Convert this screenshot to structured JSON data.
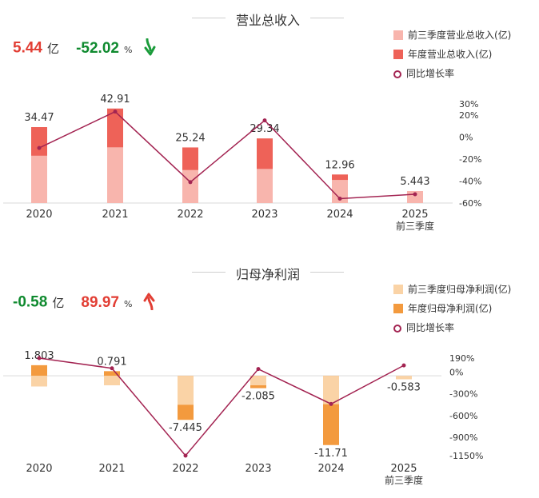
{
  "chart_data": [
    {
      "type": "bar",
      "title": "营业总收入",
      "summary": {
        "value": "5.44",
        "value_unit": "亿",
        "change": "-52.02",
        "change_unit": "%",
        "direction": "down"
      },
      "legend": [
        "前三季度营业总收入(亿)",
        "年度营业总收入(亿)",
        "同比增长率"
      ],
      "categories": [
        "2020",
        "2021",
        "2022",
        "2023",
        "2024",
        "2025"
      ],
      "category_sublabels": [
        "",
        "",
        "",
        "",
        "",
        "前三季度"
      ],
      "series": [
        {
          "name": "前三季度营业总收入(亿)",
          "values": [
            21.5,
            25.3,
            15.0,
            15.5,
            10.5,
            5.443
          ]
        },
        {
          "name": "年度营业总收入(亿)",
          "values": [
            34.47,
            42.91,
            25.24,
            29.34,
            12.96,
            null
          ]
        },
        {
          "name": "同比增长率",
          "axis": "right",
          "values": [
            -10,
            23,
            -41,
            15,
            -56,
            -52.02
          ]
        }
      ],
      "bar_labels": [
        "34.47",
        "42.91",
        "25.24",
        "29.34",
        "12.96",
        "5.443"
      ],
      "ylim": [
        0,
        45
      ],
      "y2_ticks": [
        "30%",
        "20%",
        "0%",
        "-20%",
        "-40%",
        "-60%"
      ],
      "y2_tick_values": [
        30,
        20,
        0,
        -20,
        -40,
        -60
      ],
      "y2lim": [
        -60,
        30
      ],
      "colors": {
        "nine_month": "#f8b5ad",
        "annual": "#ee6258",
        "growth": "#a32452"
      }
    },
    {
      "type": "bar",
      "title": "归母净利润",
      "summary": {
        "value": "-0.58",
        "value_unit": "亿",
        "change": "89.97",
        "change_unit": "%",
        "direction": "up"
      },
      "legend": [
        "前三季度归母净利润(亿)",
        "年度归母净利润(亿)",
        "同比增长率"
      ],
      "categories": [
        "2020",
        "2021",
        "2022",
        "2023",
        "2024",
        "2025"
      ],
      "category_sublabels": [
        "",
        "",
        "",
        "",
        "",
        "前三季度"
      ],
      "series": [
        {
          "name": "前三季度归母净利润(亿)",
          "values": [
            -1.8,
            -1.6,
            -4.9,
            -1.6,
            -4.8,
            -0.583
          ]
        },
        {
          "name": "年度归母净利润(亿)",
          "values": [
            1.803,
            0.791,
            -7.445,
            -2.085,
            -11.71,
            null
          ]
        },
        {
          "name": "同比增长率",
          "axis": "right",
          "values": [
            190,
            50,
            -1150,
            40,
            -440,
            89.97
          ]
        }
      ],
      "bar_labels": [
        "1.803",
        "0.791",
        "-7.445",
        "-2.085",
        "-11.71",
        "-0.583"
      ],
      "ylim": [
        -13.5,
        3
      ],
      "y2_ticks": [
        "190%",
        "0%",
        "-300%",
        "-600%",
        "-900%",
        "-1150%"
      ],
      "y2_tick_values": [
        190,
        0,
        -300,
        -600,
        -900,
        -1150
      ],
      "y2lim": [
        -1150,
        190
      ],
      "colors": {
        "nine_month": "#fad3a6",
        "annual": "#f39a3e",
        "growth": "#a32452"
      }
    }
  ]
}
